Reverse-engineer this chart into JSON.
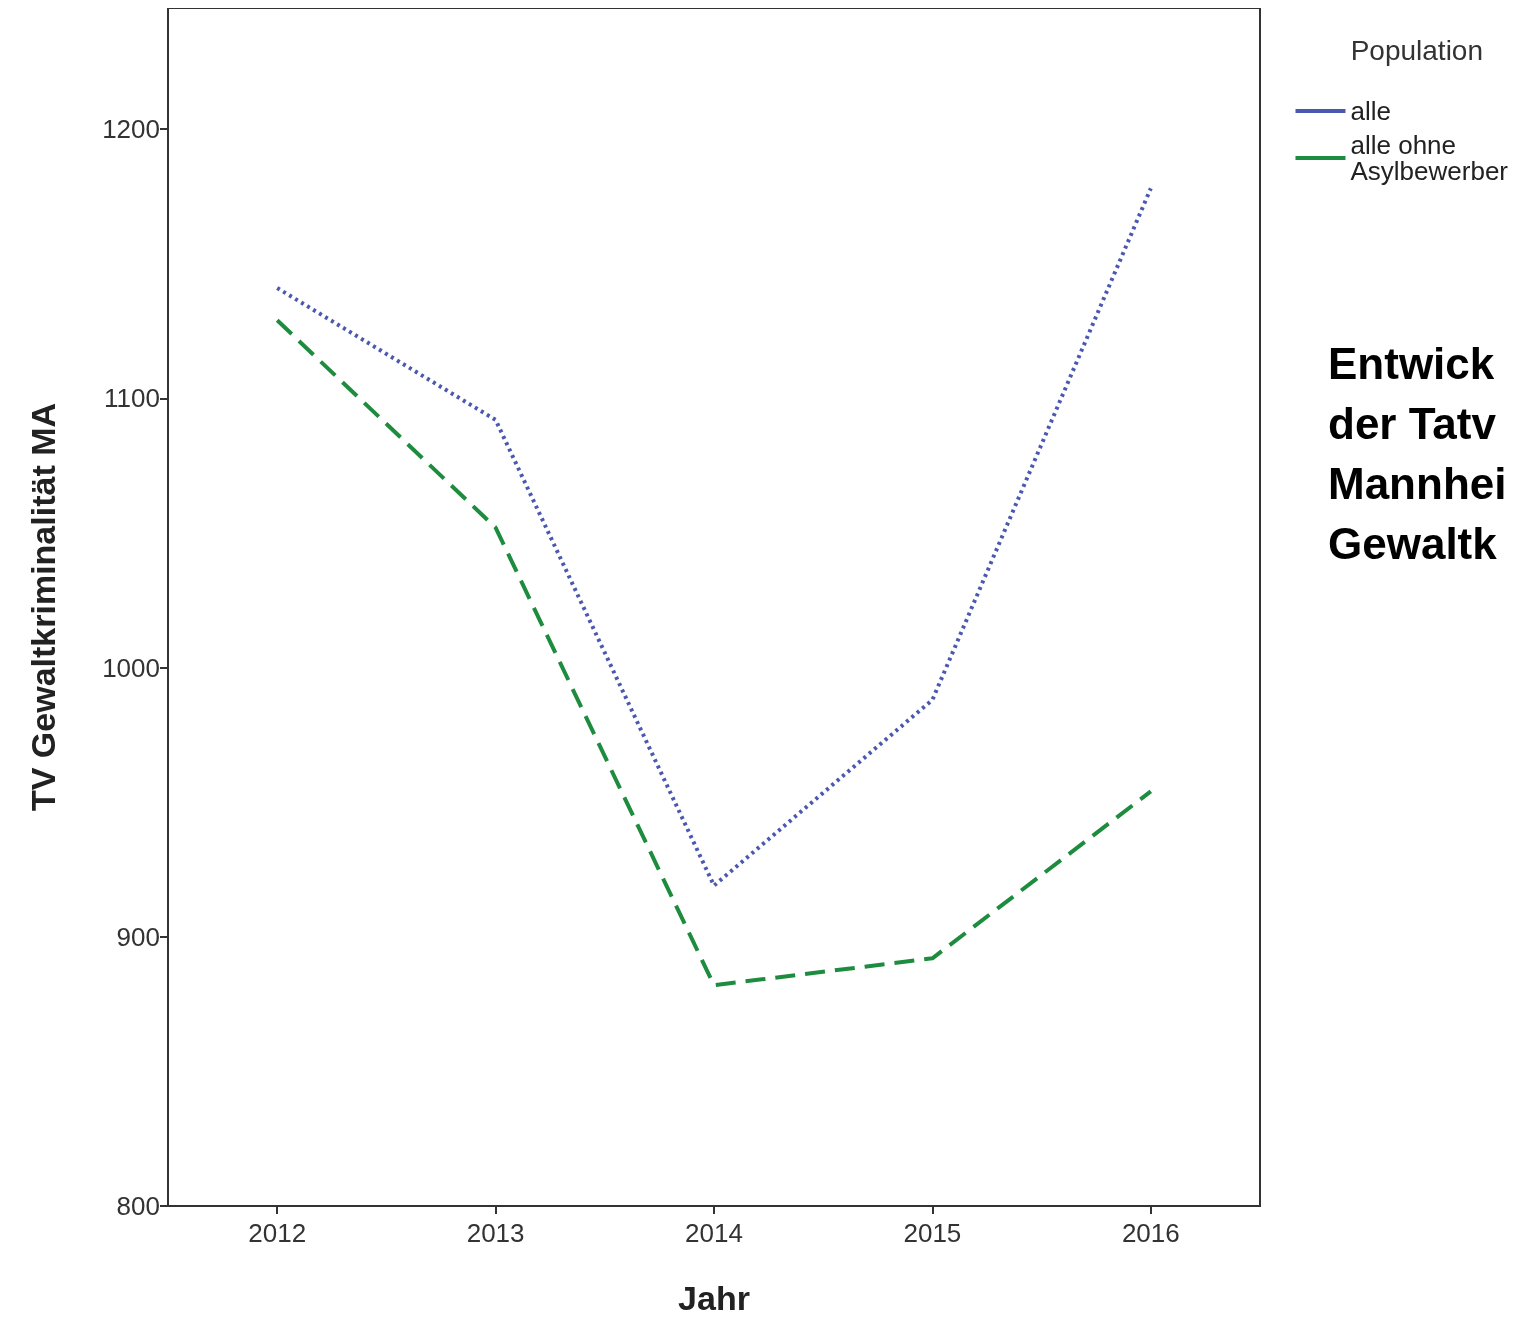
{
  "chart_data": {
    "type": "line",
    "xlabel": "Jahr",
    "ylabel": "TV Gewaltkriminalität MA",
    "legend_title": "Population",
    "legend": "top right",
    "categories": [
      "2012",
      "2013",
      "2014",
      "2015",
      "2016"
    ],
    "series": [
      {
        "name": "alle",
        "color": "#4a58b0",
        "line_style": "dotted",
        "values": [
          1141,
          1092,
          919,
          988,
          1178
        ]
      },
      {
        "name": "alle ohne Asylbewerber",
        "color": "#1e8c3e",
        "line_style": "dashed",
        "values": [
          1129,
          1052,
          882,
          892,
          954
        ]
      }
    ],
    "ylim": [
      800,
      1245
    ],
    "yticks": [
      800,
      900,
      1000,
      1100,
      1200
    ],
    "grid": false,
    "marker": "none",
    "annotations": [
      "Entwick\nder Tatv\nMannhei\nGewaltk"
    ]
  }
}
